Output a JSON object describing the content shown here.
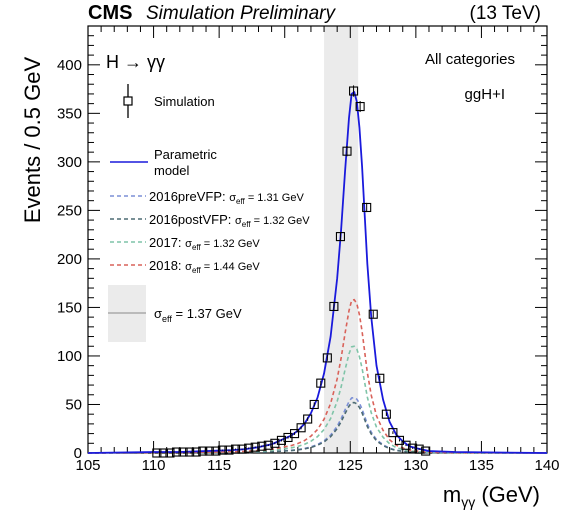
{
  "header": {
    "experiment": "CMS",
    "subtitle": "Simulation Preliminary",
    "energy": "(13 TeV)"
  },
  "chart_data": {
    "type": "scatter",
    "xlabel_main": "m",
    "xlabel_sub": "γγ",
    "xlabel_unit": " (GeV)",
    "ylabel": "Events / 0.5 GeV",
    "xlim": [
      105,
      140
    ],
    "ylim": [
      0,
      440
    ],
    "xticks": [
      105,
      110,
      115,
      120,
      125,
      130,
      135,
      140
    ],
    "yticks": [
      0,
      50,
      100,
      150,
      200,
      250,
      300,
      350,
      400
    ],
    "process_label": "H → γγ",
    "category_label": "All categories",
    "production_label": "ggH+I",
    "sigma_eff_band": [
      123.0,
      125.6
    ],
    "legend": {
      "simulation": "Simulation",
      "model_line1": "Parametric",
      "model_line2": "model",
      "sigma_eff_total": "σ",
      "sigma_eff_total_sub": "eff",
      "sigma_eff_total_val": " = 1.37 GeV",
      "years": [
        {
          "name": "2016preVFP:",
          "sigma": "1.31 GeV",
          "color": "#7b8fd6"
        },
        {
          "name": "2016postVFP:",
          "sigma": "1.32 GeV",
          "color": "#4d6b73"
        },
        {
          "name": "2017:",
          "sigma": "1.32 GeV",
          "color": "#7fc4a8"
        },
        {
          "name": "2018:",
          "sigma": "1.44 GeV",
          "color": "#d9625a"
        }
      ]
    },
    "simulation_points": [
      [
        110.25,
        0
      ],
      [
        110.75,
        0
      ],
      [
        111.25,
        0
      ],
      [
        111.75,
        1
      ],
      [
        112.25,
        1
      ],
      [
        112.75,
        1
      ],
      [
        113.25,
        1
      ],
      [
        113.75,
        2
      ],
      [
        114.25,
        2
      ],
      [
        114.75,
        2
      ],
      [
        115.25,
        3
      ],
      [
        115.75,
        3
      ],
      [
        116.25,
        4
      ],
      [
        116.75,
        4
      ],
      [
        117.25,
        5
      ],
      [
        117.75,
        6
      ],
      [
        118.25,
        7
      ],
      [
        118.75,
        8
      ],
      [
        119.25,
        10
      ],
      [
        119.75,
        13
      ],
      [
        120.25,
        16
      ],
      [
        120.75,
        20
      ],
      [
        121.25,
        26
      ],
      [
        121.75,
        35
      ],
      [
        122.25,
        50
      ],
      [
        122.75,
        72
      ],
      [
        123.25,
        98
      ],
      [
        123.75,
        151
      ],
      [
        124.25,
        223
      ],
      [
        124.75,
        311
      ],
      [
        125.25,
        373
      ],
      [
        125.75,
        357
      ],
      [
        126.25,
        253
      ],
      [
        126.75,
        143
      ],
      [
        127.25,
        77
      ],
      [
        127.75,
        40
      ],
      [
        128.25,
        21
      ],
      [
        128.75,
        13
      ],
      [
        129.25,
        8
      ],
      [
        129.75,
        5
      ],
      [
        130.25,
        4
      ],
      [
        130.75,
        2
      ]
    ],
    "model_curve": [
      [
        105,
        0
      ],
      [
        110,
        1
      ],
      [
        112,
        1
      ],
      [
        114,
        2
      ],
      [
        116,
        3
      ],
      [
        117,
        4
      ],
      [
        118,
        6
      ],
      [
        119,
        9
      ],
      [
        120,
        15
      ],
      [
        120.5,
        18
      ],
      [
        121,
        23
      ],
      [
        121.5,
        30
      ],
      [
        122,
        41
      ],
      [
        122.5,
        57
      ],
      [
        123,
        82
      ],
      [
        123.5,
        120
      ],
      [
        124,
        180
      ],
      [
        124.3,
        230
      ],
      [
        124.6,
        290
      ],
      [
        124.9,
        345
      ],
      [
        125.1,
        370
      ],
      [
        125.3,
        372
      ],
      [
        125.5,
        362
      ],
      [
        125.7,
        335
      ],
      [
        125.9,
        295
      ],
      [
        126.1,
        245
      ],
      [
        126.3,
        195
      ],
      [
        126.6,
        140
      ],
      [
        127,
        90
      ],
      [
        127.5,
        55
      ],
      [
        128,
        32
      ],
      [
        128.5,
        19
      ],
      [
        129,
        12
      ],
      [
        129.5,
        7
      ],
      [
        130,
        5
      ],
      [
        131,
        2
      ],
      [
        133,
        1
      ],
      [
        140,
        0
      ]
    ],
    "year_peaks": [
      {
        "name": "2016preVFP",
        "peak": 57
      },
      {
        "name": "2016postVFP",
        "peak": 52
      },
      {
        "name": "2017",
        "peak": 110
      },
      {
        "name": "2018",
        "peak": 158
      }
    ],
    "colors": {
      "model": "#1a1adc",
      "band": "#ebebeb",
      "axis": "#000000"
    }
  }
}
